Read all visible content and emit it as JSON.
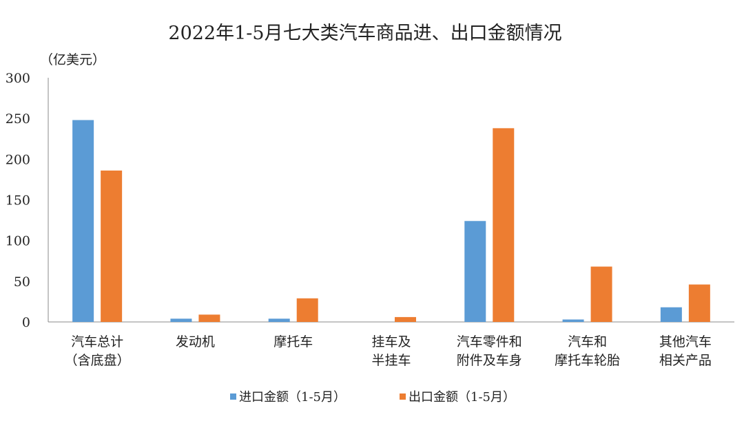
{
  "chart_data": {
    "type": "bar",
    "title": "2022年1-5月七大类汽车商品进、出口金额情况",
    "unit_label": "（亿美元）",
    "xlabel": "",
    "ylabel": "",
    "ylim": [
      0,
      300
    ],
    "yticks": [
      0,
      50,
      100,
      150,
      200,
      250,
      300
    ],
    "grid": false,
    "legend_position": "bottom",
    "categories": [
      [
        "汽车总计",
        "（含底盘）"
      ],
      [
        "发动机"
      ],
      [
        "摩托车"
      ],
      [
        "挂车及",
        "半挂车"
      ],
      [
        "汽车零件和",
        "附件及车身"
      ],
      [
        "汽车和",
        "摩托车轮胎"
      ],
      [
        "其他汽车",
        "相关产品"
      ]
    ],
    "series": [
      {
        "name": "进口金额（1-5月）",
        "color": "#5b9bd5",
        "values": [
          248,
          4,
          4,
          0,
          124,
          3,
          18
        ]
      },
      {
        "name": "出口金额（1-5月）",
        "color": "#ed7d31",
        "values": [
          186,
          9,
          29,
          6,
          238,
          68,
          46
        ]
      }
    ]
  }
}
